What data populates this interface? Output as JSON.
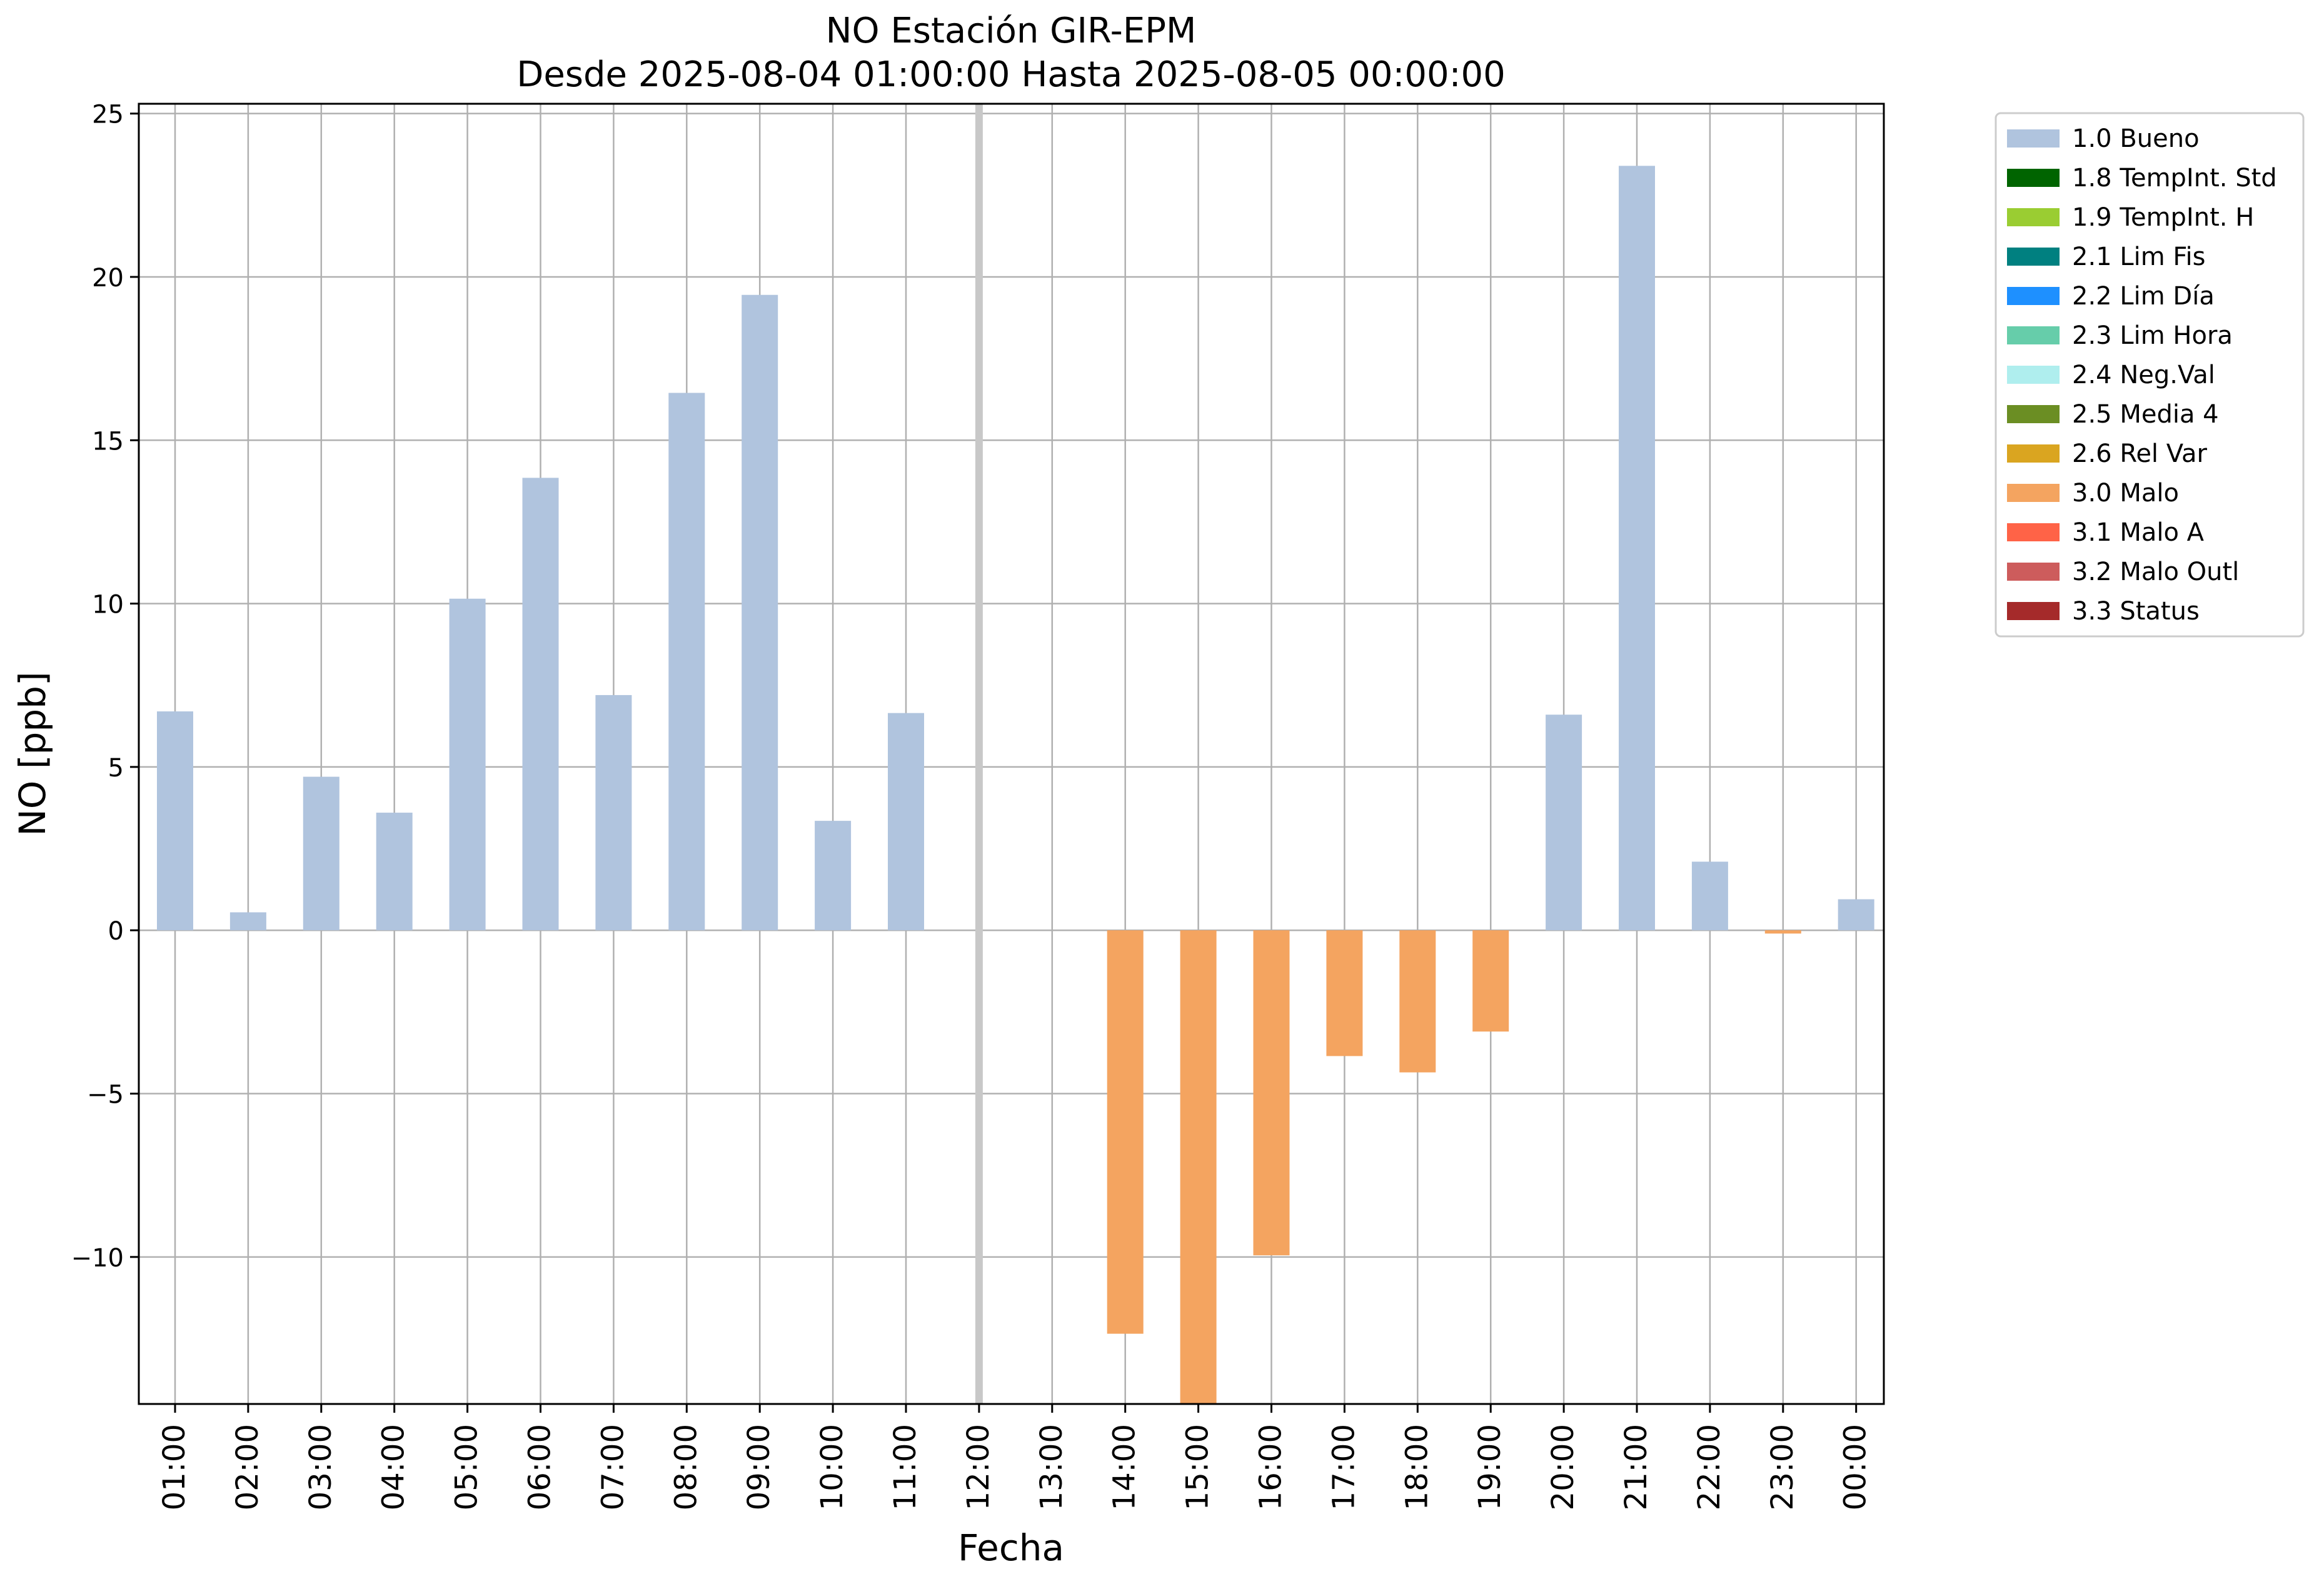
{
  "chart_data": {
    "type": "bar",
    "title": "NO Estación GIR-EPM",
    "subtitle": "Desde 2025-08-04 01:00:00 Hasta 2025-08-05 00:00:00",
    "xlabel": "Fecha",
    "ylabel": "NO [ppb]",
    "ylim": [
      -14.5,
      25.3
    ],
    "yticks": [
      -10,
      -5,
      0,
      5,
      10,
      15,
      20,
      25
    ],
    "ytick_labels": [
      "−10",
      "−5",
      "0",
      "5",
      "10",
      "15",
      "20",
      "25"
    ],
    "grid": true,
    "legend_position": "outside-top-right",
    "categories": [
      "01:00",
      "02:00",
      "03:00",
      "04:00",
      "05:00",
      "06:00",
      "07:00",
      "08:00",
      "09:00",
      "10:00",
      "11:00",
      "12:00",
      "13:00",
      "14:00",
      "15:00",
      "16:00",
      "17:00",
      "18:00",
      "19:00",
      "20:00",
      "21:00",
      "22:00",
      "23:00",
      "00:00"
    ],
    "values": [
      6.7,
      0.55,
      4.7,
      3.6,
      10.15,
      13.85,
      7.2,
      16.45,
      19.45,
      3.35,
      6.65,
      null,
      null,
      -12.35,
      -14.5,
      -9.95,
      -3.85,
      -4.35,
      -3.1,
      6.6,
      23.4,
      2.1,
      -0.1,
      0.95
    ],
    "flags": [
      "1.0 Bueno",
      "1.0 Bueno",
      "1.0 Bueno",
      "1.0 Bueno",
      "1.0 Bueno",
      "1.0 Bueno",
      "1.0 Bueno",
      "1.0 Bueno",
      "1.0 Bueno",
      "1.0 Bueno",
      "1.0 Bueno",
      null,
      null,
      "3.0 Malo",
      "3.0 Malo",
      "3.0 Malo",
      "3.0 Malo",
      "3.0 Malo",
      "3.0 Malo",
      "1.0 Bueno",
      "1.0 Bueno",
      "1.0 Bueno",
      "3.0 Malo",
      "1.0 Bueno"
    ],
    "highlight_vline_category": "12:00",
    "legend": [
      {
        "label": "1.0 Bueno",
        "color": "#b0c4de"
      },
      {
        "label": "1.8 TempInt. Std",
        "color": "#006400"
      },
      {
        "label": "1.9 TempInt. H",
        "color": "#9acd32"
      },
      {
        "label": "2.1 Lim Fis",
        "color": "#008080"
      },
      {
        "label": "2.2 Lim Día",
        "color": "#1e90ff"
      },
      {
        "label": "2.3 Lim Hora",
        "color": "#66cdaa"
      },
      {
        "label": "2.4 Neg.Val",
        "color": "#afeeee"
      },
      {
        "label": "2.5 Media 4",
        "color": "#6b8e23"
      },
      {
        "label": "2.6 Rel Var",
        "color": "#daa520"
      },
      {
        "label": "3.0 Malo",
        "color": "#f4a460"
      },
      {
        "label": "3.1 Malo A",
        "color": "#ff6347"
      },
      {
        "label": "3.2 Malo Outl",
        "color": "#cd5c5c"
      },
      {
        "label": "3.3 Status",
        "color": "#a52a2a"
      }
    ]
  }
}
